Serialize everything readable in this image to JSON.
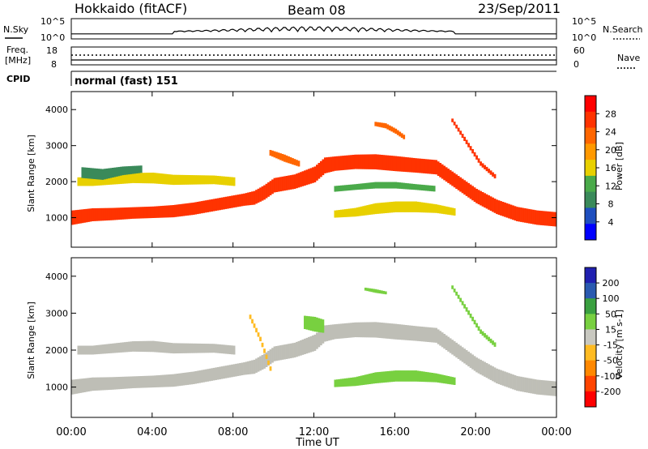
{
  "header": {
    "station": "Hokkaido (fitACF)",
    "beam": "Beam 08",
    "date": "23/Sep/2011"
  },
  "strips": {
    "nsky_label": "N.Sky",
    "nsky_ticks": [
      "10^5",
      "10^0"
    ],
    "nsearch_label": "N.Search",
    "freq_label_1": "Freq.",
    "freq_label_2": "[MHz]",
    "freq_ticks": [
      "18",
      "8"
    ],
    "nave_label": "Nave",
    "nave_ticks": [
      "60",
      "0"
    ],
    "cpid_label": "CPID",
    "cpid_text": "normal (fast) 151"
  },
  "colors": {
    "power": [
      "#0000ff",
      "#1f4fbf",
      "#3a8a5a",
      "#4aaa4a",
      "#e8d000",
      "#ff9900",
      "#ff6600",
      "#ff3300",
      "#ff0000"
    ],
    "velocity": [
      "#ff0000",
      "#ff4400",
      "#ff8800",
      "#ffbb22",
      "#c8c8c0",
      "#78d040",
      "#3aa040",
      "#2a5ab0",
      "#2020b0"
    ],
    "ground_scatter": "#bebeb6"
  },
  "chart_data": {
    "type": "heatmap",
    "xlabel": "Time UT",
    "x_ticks": [
      "00:00",
      "04:00",
      "08:00",
      "12:00",
      "16:00",
      "20:00",
      "00:00"
    ],
    "xlim_hours": [
      0,
      24
    ],
    "ylabel": "Slant Range [km]",
    "y_ticks": [
      1000,
      2000,
      3000,
      4000
    ],
    "ylim": [
      180,
      4500
    ],
    "panels": [
      {
        "name": "power",
        "colorbar_label": "Power [dB]",
        "colorbar_ticks": [
          "28",
          "24",
          "20",
          "16",
          "12",
          "8",
          "4"
        ],
        "scatter_bands": [
          {
            "t": [
              0,
              1,
              2,
              3,
              4,
              5,
              6,
              7,
              8,
              8.5,
              9,
              9.5,
              10,
              11,
              12,
              12.5,
              13,
              14,
              15,
              16,
              17,
              18,
              19,
              20,
              21,
              22,
              23,
              24
            ],
            "center": [
              1000,
              1080,
              1100,
              1130,
              1150,
              1180,
              1250,
              1350,
              1450,
              1500,
              1550,
              1700,
              1900,
              2000,
              2200,
              2450,
              2500,
              2550,
              2550,
              2500,
              2450,
              2400,
              2000,
              1600,
              1300,
              1100,
              1000,
              950
            ],
            "halfwidth": [
              200,
              180,
              170,
              160,
              160,
              170,
              170,
              170,
              170,
              170,
              190,
              200,
              200,
              200,
              220,
              220,
              200,
              200,
              210,
              210,
              200,
              200,
              200,
              200,
              200,
              200,
              200,
              200
            ],
            "value_db": 27
          },
          {
            "t": [
              0.3,
              1,
              2,
              3,
              4,
              5,
              6,
              7,
              8
            ],
            "center": [
              2000,
              2000,
              2050,
              2100,
              2100,
              2050,
              2050,
              2050,
              2000
            ],
            "halfwidth": [
              120,
              120,
              130,
              140,
              150,
              140,
              130,
              120,
              120
            ],
            "value_db": 14
          },
          {
            "t": [
              0.5,
              1.5,
              2.5,
              3.5
            ],
            "center": [
              2250,
              2200,
              2300,
              2350
            ],
            "halfwidth": [
              150,
              150,
              120,
              100
            ],
            "value_db": 8
          },
          {
            "t": [
              13,
              14,
              15,
              16,
              17,
              18,
              19
            ],
            "center": [
              1100,
              1150,
              1250,
              1300,
              1300,
              1250,
              1150
            ],
            "halfwidth": [
              100,
              120,
              150,
              150,
              150,
              120,
              100
            ],
            "value_db": 16
          },
          {
            "t": [
              13,
              14,
              15,
              16,
              17,
              18
            ],
            "center": [
              1800,
              1850,
              1900,
              1900,
              1850,
              1800
            ],
            "halfwidth": [
              80,
              80,
              90,
              90,
              80,
              80
            ],
            "value_db": 12
          },
          {
            "t": [
              9.8,
              10.5,
              11.2
            ],
            "center": [
              2800,
              2650,
              2500
            ],
            "halfwidth": [
              80,
              100,
              80
            ],
            "value_db": 22
          },
          {
            "t": [
              15,
              15.5,
              16,
              16.5
            ],
            "center": [
              3600,
              3550,
              3400,
              3200
            ],
            "halfwidth": [
              60,
              70,
              70,
              60
            ],
            "value_db": 24
          },
          {
            "t": [
              18.8,
              19.5,
              20.2,
              21
            ],
            "center": [
              3700,
              3100,
              2500,
              2100
            ],
            "halfwidth": [
              50,
              60,
              60,
              60
            ],
            "value_db": 26
          }
        ]
      },
      {
        "name": "velocity",
        "colorbar_label": "Velocity [m s-1]",
        "colorbar_ticks": [
          "200",
          "100",
          "50",
          "15",
          "-15",
          "-50",
          "-100",
          "-200"
        ],
        "scatter_bands": [
          {
            "t": [
              0,
              1,
              2,
              3,
              4,
              5,
              6,
              7,
              8,
              8.5,
              9,
              9.5,
              10,
              11,
              12,
              12.5,
              13,
              14,
              15,
              16,
              17,
              18,
              19,
              20,
              21,
              22,
              23,
              24
            ],
            "center": [
              1000,
              1080,
              1100,
              1130,
              1150,
              1180,
              1250,
              1350,
              1450,
              1500,
              1550,
              1700,
              1900,
              2000,
              2200,
              2450,
              2500,
              2550,
              2550,
              2500,
              2450,
              2400,
              2000,
              1600,
              1300,
              1100,
              1000,
              950
            ],
            "halfwidth": [
              200,
              180,
              170,
              160,
              160,
              170,
              170,
              170,
              170,
              170,
              190,
              200,
              200,
              200,
              220,
              220,
              200,
              200,
              210,
              210,
              200,
              200,
              200,
              200,
              200,
              200,
              200,
              200
            ],
            "value_ms": 0
          },
          {
            "t": [
              0.3,
              1,
              2,
              3,
              4,
              5,
              6,
              7,
              8
            ],
            "center": [
              2000,
              2000,
              2050,
              2100,
              2100,
              2050,
              2050,
              2050,
              2000
            ],
            "halfwidth": [
              120,
              120,
              130,
              140,
              150,
              140,
              130,
              120,
              120
            ],
            "value_ms": 0
          },
          {
            "t": [
              13,
              14,
              15,
              16,
              17,
              18,
              19
            ],
            "center": [
              1100,
              1150,
              1250,
              1300,
              1300,
              1250,
              1150
            ],
            "halfwidth": [
              100,
              120,
              150,
              150,
              150,
              120,
              100
            ],
            "value_ms": 40
          },
          {
            "t": [
              11.5,
              12,
              12.4
            ],
            "center": [
              2750,
              2700,
              2650
            ],
            "halfwidth": [
              180,
              200,
              180
            ],
            "value_ms": 40
          },
          {
            "t": [
              14.5,
              15,
              15.5
            ],
            "center": [
              3650,
              3600,
              3550
            ],
            "halfwidth": [
              40,
              50,
              40
            ],
            "value_ms": 40
          },
          {
            "t": [
              18.8,
              19.5,
              20.2,
              21
            ],
            "center": [
              3700,
              3100,
              2500,
              2100
            ],
            "halfwidth": [
              50,
              60,
              60,
              60
            ],
            "value_ms": 40
          },
          {
            "t": [
              8.8,
              9.3,
              9.8
            ],
            "center": [
              2900,
              2300,
              1500
            ],
            "halfwidth": [
              60,
              60,
              60
            ],
            "value_ms": -40
          }
        ]
      }
    ]
  }
}
